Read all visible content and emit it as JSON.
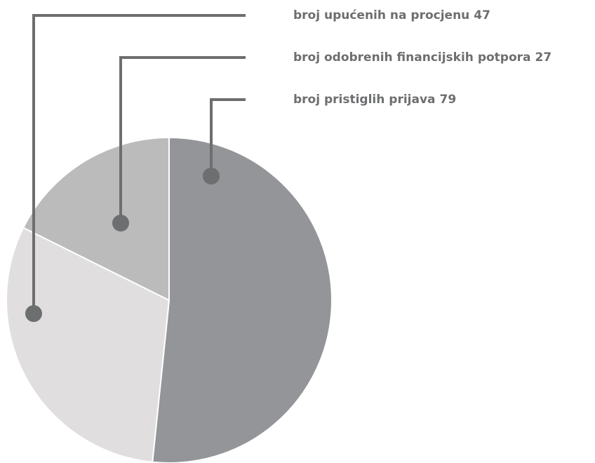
{
  "chart_data": {
    "type": "pie",
    "categories": [
      "broj pristiglih prijava",
      "broj upućenih na procjenu",
      "broj odobrenih financijskih potpora"
    ],
    "values": [
      79,
      47,
      27
    ],
    "colors": [
      "#939598",
      "#e0dedf",
      "#bcbbbc"
    ]
  }
}
